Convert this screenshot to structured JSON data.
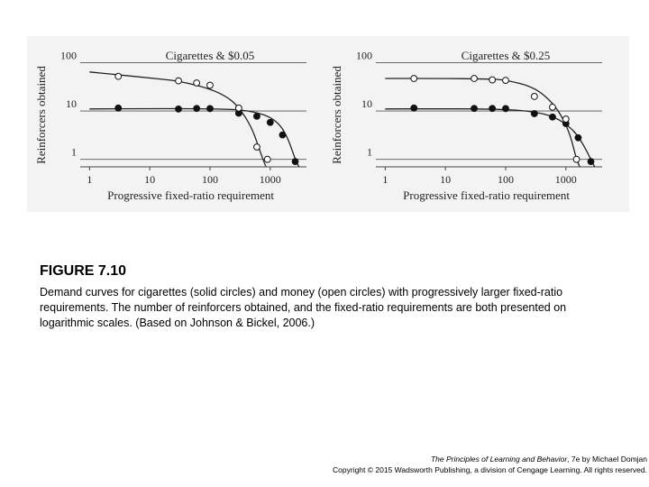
{
  "chart_data": [
    {
      "type": "scatter",
      "title": "Cigarettes & $0.05",
      "xlabel": "Progressive fixed-ratio requirement",
      "ylabel": "Reinforcers obtained",
      "xscale": "log",
      "yscale": "log",
      "xlim": [
        0.7,
        4000
      ],
      "ylim": [
        0.7,
        150
      ],
      "xticks": [
        1,
        10,
        100,
        1000
      ],
      "xtick_labels": [
        "1",
        "10",
        "100",
        "1000"
      ],
      "yticks": [
        1,
        10,
        100
      ],
      "ytick_labels": [
        "1",
        "10",
        "100"
      ],
      "series": [
        {
          "name": "Cigarettes (solid circles)",
          "marker": "solid",
          "x": [
            3,
            30,
            60,
            100,
            300,
            600,
            1000,
            1600,
            2600
          ],
          "y": [
            11.5,
            11,
            11.3,
            11.2,
            9,
            7.8,
            5.8,
            3.2,
            0.9
          ],
          "curve_x": [
            1,
            10,
            100,
            300,
            600,
            1000,
            1500,
            2000,
            2600,
            3000
          ],
          "curve_y": [
            11,
            11.2,
            11.1,
            10.7,
            9.3,
            7.5,
            5,
            2.6,
            1.0,
            0.7
          ]
        },
        {
          "name": "Money (open circles)",
          "marker": "open",
          "x": [
            3,
            30,
            60,
            100,
            300,
            600,
            900
          ],
          "y": [
            52,
            42,
            38,
            34,
            11.5,
            1.8,
            1.0
          ],
          "curve_x": [
            1,
            3,
            10,
            30,
            100,
            200,
            300,
            500,
            700,
            850
          ],
          "curve_y": [
            64,
            56,
            48,
            42,
            29,
            19,
            12,
            4.5,
            1.3,
            0.7
          ]
        }
      ]
    },
    {
      "type": "scatter",
      "title": "Cigarettes & $0.25",
      "xlabel": "Progressive fixed-ratio requirement",
      "ylabel": "Reinforcers obtained",
      "xscale": "log",
      "yscale": "log",
      "xlim": [
        0.7,
        4000
      ],
      "ylim": [
        0.7,
        150
      ],
      "xticks": [
        1,
        10,
        100,
        1000
      ],
      "xtick_labels": [
        "1",
        "10",
        "100",
        "1000"
      ],
      "yticks": [
        1,
        10,
        100
      ],
      "ytick_labels": [
        "1",
        "10",
        "100"
      ],
      "series": [
        {
          "name": "Cigarettes (solid circles)",
          "marker": "solid",
          "x": [
            3,
            30,
            60,
            100,
            300,
            600,
            1000,
            1600,
            2600
          ],
          "y": [
            11.5,
            11.3,
            11.3,
            11.2,
            8.8,
            7.5,
            5.5,
            2.8,
            0.9
          ],
          "curve_x": [
            1,
            10,
            100,
            300,
            600,
            1000,
            1500,
            2000,
            2600,
            3000
          ],
          "curve_y": [
            11,
            11.1,
            10.9,
            9.6,
            7.8,
            5.4,
            3.4,
            1.9,
            1.0,
            0.7
          ]
        },
        {
          "name": "Money (open circles)",
          "marker": "open",
          "x": [
            3,
            30,
            60,
            100,
            300,
            600,
            1000,
            1500
          ],
          "y": [
            47,
            47,
            44,
            43,
            20,
            12,
            6.8,
            1.0
          ],
          "curve_x": [
            1,
            10,
            50,
            100,
            300,
            600,
            900,
            1200,
            1500,
            1700
          ],
          "curve_y": [
            47,
            47,
            46,
            44,
            31,
            15,
            7,
            3,
            1.0,
            0.7
          ]
        }
      ]
    }
  ],
  "figure": {
    "title": "FIGURE 7.10",
    "caption": "Demand curves for cigarettes (solid circles) and money (open circles) with progressively larger fixed-ratio requirements. The number of reinforcers obtained, and the fixed-ratio requirements are both presented on logarithmic scales. (Based on Johnson & Bickel, 2006.)"
  },
  "footer": {
    "book_title": "The Principles of Learning and Behavior",
    "edition": ", 7e by Michael Domjan",
    "copyright": "Copyright © 2015 Wadsworth Publishing, a division of Cengage Learning. All rights reserved."
  }
}
